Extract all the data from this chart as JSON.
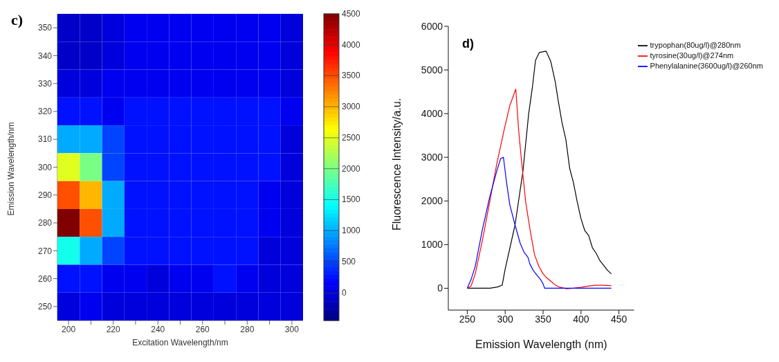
{
  "chart_data": [
    {
      "type": "heatmap",
      "title": "c)",
      "xlabel": "Excitation Wavelength/nm",
      "ylabel": "Emission Wavelength/nm",
      "categories": [
        "200",
        null,
        "220",
        null,
        "240",
        null,
        "260",
        null,
        "280",
        null,
        "300"
      ],
      "y_categories": [
        "350",
        "340",
        "330",
        "320",
        "310",
        "300",
        "290",
        "280",
        "270",
        "260",
        "250"
      ],
      "clim": [
        -450,
        4500
      ],
      "cticks": [
        0,
        500,
        1000,
        1500,
        2000,
        2500,
        3000,
        3500,
        4000,
        4500
      ],
      "cells": [
        [
          -100,
          -100,
          0,
          100,
          100,
          100,
          100,
          100,
          100,
          100,
          0
        ],
        [
          -100,
          -100,
          0,
          100,
          100,
          100,
          100,
          100,
          100,
          100,
          0
        ],
        [
          0,
          0,
          100,
          100,
          100,
          100,
          100,
          100,
          100,
          100,
          0
        ],
        [
          250,
          250,
          100,
          250,
          250,
          250,
          250,
          250,
          250,
          250,
          100
        ],
        [
          1000,
          1000,
          500,
          250,
          250,
          250,
          250,
          250,
          250,
          250,
          0
        ],
        [
          2500,
          2000,
          500,
          250,
          250,
          250,
          250,
          250,
          250,
          250,
          0
        ],
        [
          3500,
          3000,
          1000,
          250,
          250,
          250,
          250,
          250,
          250,
          100,
          0
        ],
        [
          4500,
          3500,
          1000,
          250,
          250,
          250,
          250,
          250,
          250,
          100,
          0
        ],
        [
          1500,
          1000,
          500,
          250,
          250,
          250,
          250,
          250,
          250,
          0,
          0
        ],
        [
          250,
          250,
          100,
          100,
          0,
          100,
          100,
          250,
          100,
          0,
          0
        ],
        [
          0,
          100,
          0,
          0,
          0,
          0,
          0,
          0,
          0,
          0,
          0
        ]
      ]
    },
    {
      "type": "line",
      "title": "d)",
      "xlabel": "Emission Wavelength (nm)",
      "ylabel": "Fluorescence Intensity/a.u.",
      "xlim": [
        225,
        470
      ],
      "xticks": [
        250,
        300,
        350,
        400,
        450
      ],
      "ylim": [
        -500,
        6000
      ],
      "yticks": [
        0,
        1000,
        2000,
        3000,
        4000,
        5000,
        6000
      ],
      "legend": "top right",
      "marker": "none",
      "line_style": "solid",
      "series": [
        {
          "name": "trypophan(80ug/l)@280nm",
          "color": "#000000",
          "x": [
            250,
            280,
            290,
            296,
            300,
            313,
            323.5,
            331,
            336,
            340,
            345,
            354,
            360,
            366,
            370,
            375,
            380,
            385,
            390,
            395,
            400,
            405,
            410,
            415,
            420,
            425,
            430,
            435,
            440
          ],
          "values": [
            0,
            0,
            30,
            70,
            440,
            1450,
            2690,
            4000,
            4620,
            5220,
            5400,
            5430,
            5200,
            4730,
            4290,
            3790,
            3410,
            2750,
            2420,
            1980,
            1590,
            1320,
            1210,
            930,
            800,
            630,
            520,
            410,
            330
          ]
        },
        {
          "name": "tyrosine(30ug/l)@274nm",
          "color": "#ff0000",
          "x": [
            250,
            255,
            260.5,
            270,
            279.6,
            289,
            298.7,
            306,
            314,
            317.7,
            321.6,
            327,
            333,
            338.7,
            344.5,
            350,
            354,
            359.7,
            365.5,
            371,
            380.7,
            390,
            400,
            409,
            419,
            428,
            440
          ],
          "values": [
            0,
            50,
            330,
            1100,
            1980,
            2860,
            3630,
            4180,
            4560,
            3630,
            2910,
            1980,
            1320,
            770,
            500,
            330,
            250,
            170,
            80,
            30,
            -10,
            0,
            20,
            50,
            70,
            70,
            60
          ]
        },
        {
          "name": "Phenylalanine(3600ug/l)@260nm",
          "color": "#0000ff",
          "x": [
            250,
            255,
            260.5,
            270,
            279.6,
            289,
            294,
            297.7,
            302,
            306,
            313,
            319.8,
            325,
            330,
            332.5,
            337,
            342,
            347,
            350,
            352,
            440
          ],
          "values": [
            0,
            200,
            500,
            1350,
            2090,
            2690,
            2970,
            3000,
            2400,
            1920,
            1450,
            1030,
            820,
            710,
            560,
            410,
            300,
            190,
            100,
            0,
            0
          ]
        }
      ]
    }
  ]
}
